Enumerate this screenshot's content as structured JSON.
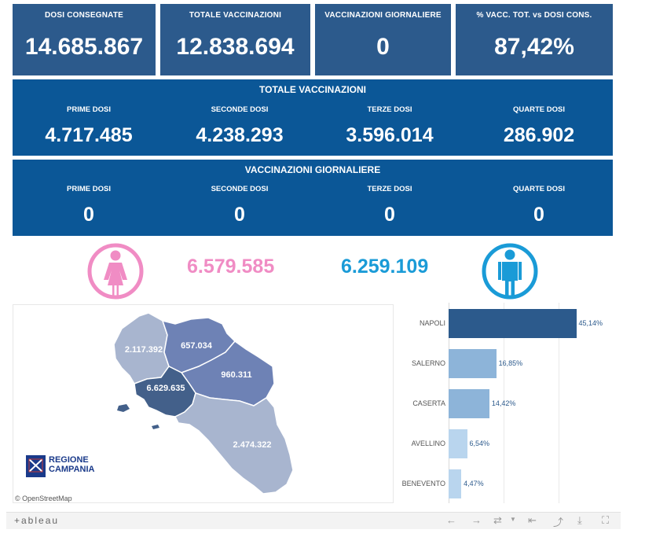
{
  "kpis": [
    {
      "label": "DOSI  CONSEGNATE",
      "value": "14.685.867"
    },
    {
      "label": "TOTALE VACCINAZIONI",
      "value": "12.838.694"
    },
    {
      "label": "VACCINAZIONI GIORNALIERE",
      "value": "0"
    },
    {
      "label": "% VACC. TOT. vs DOSI CONS.",
      "value": "87,42%"
    }
  ],
  "totale": {
    "title": "TOTALE VACCINAZIONI",
    "cols": [
      {
        "label": "PRIME DOSI",
        "value": "4.717.485"
      },
      {
        "label": "SECONDE DOSI",
        "value": "4.238.293"
      },
      {
        "label": "TERZE DOSI",
        "value": "3.596.014"
      },
      {
        "label": "QUARTE DOSI",
        "value": "286.902"
      }
    ]
  },
  "giornaliere": {
    "title": "VACCINAZIONI GIORNALIERE",
    "cols": [
      {
        "label": "PRIME DOSI",
        "value": "0"
      },
      {
        "label": "SECONDE DOSI",
        "value": "0"
      },
      {
        "label": "TERZE DOSI",
        "value": "0"
      },
      {
        "label": "QUARTE DOSI",
        "value": "0"
      }
    ]
  },
  "gender": {
    "female_value": "6.579.585",
    "male_value": "6.259.109",
    "female_color": "#f08cc4",
    "male_color": "#1a9bd7"
  },
  "map": {
    "provinces": [
      {
        "name": "Caserta",
        "value": "2.117.392",
        "color": "#a8b5cf"
      },
      {
        "name": "Benevento",
        "value": "657.034",
        "color": "#6e82b5"
      },
      {
        "name": "Avellino",
        "value": "960.311",
        "color": "#6e82b5"
      },
      {
        "name": "Napoli",
        "value": "6.629.635",
        "color": "#43608a"
      },
      {
        "name": "Salerno",
        "value": "2.474.322",
        "color": "#a8b5cf"
      }
    ],
    "logo_line1": "REGIONE",
    "logo_line2": "CAMPANIA",
    "attribution": "© OpenStreetMap"
  },
  "chart_data": {
    "type": "bar",
    "orientation": "horizontal",
    "categories": [
      "NAPOLI",
      "SALERNO",
      "CASERTA",
      "AVELLINO",
      "BENEVENTO"
    ],
    "values": [
      45.14,
      16.85,
      14.42,
      6.54,
      4.47
    ],
    "value_labels": [
      "45,14%",
      "16,85%",
      "14,42%",
      "6,54%",
      "4,47%"
    ],
    "colors": [
      "#2c5a8c",
      "#8db4d9",
      "#8db4d9",
      "#b9d5ee",
      "#b9d5ee"
    ],
    "xlim": [
      0,
      50
    ]
  },
  "toolbar": {
    "logo": "+ableau",
    "undo_icon": "←",
    "redo_icon": "→",
    "revert_icon": "⇄",
    "pause_icon": "⇤",
    "share_icon": "⤴",
    "download_icon": "⤓",
    "fullscreen_icon": "⛶"
  }
}
